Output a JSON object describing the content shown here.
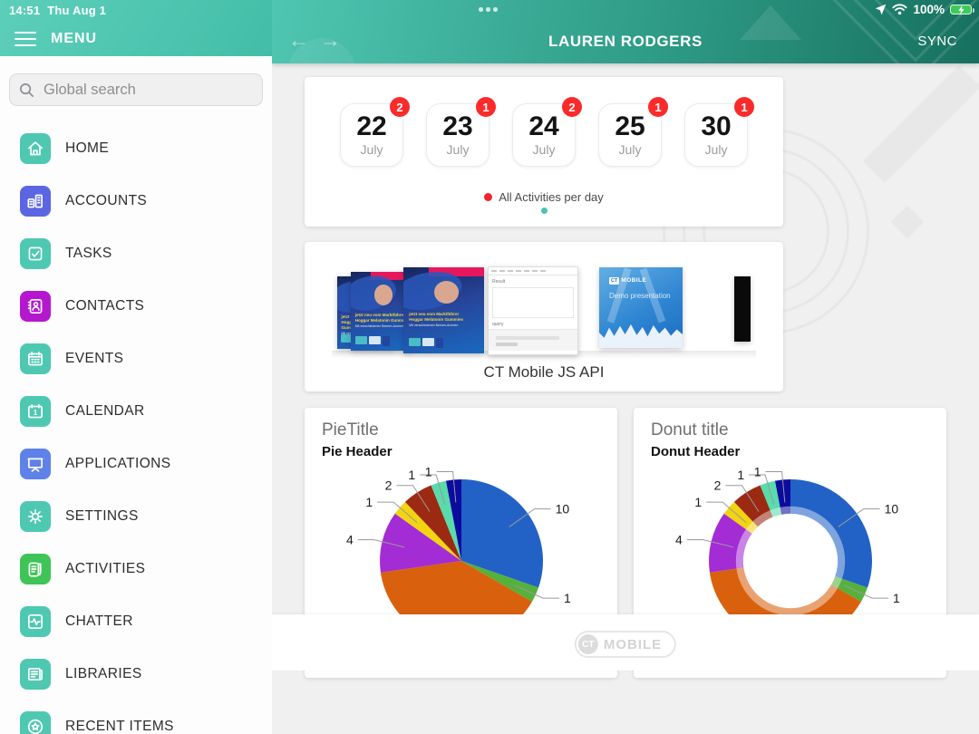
{
  "status_bar": {
    "time": "14:51",
    "date": "Thu Aug 1",
    "battery_percent": "100%"
  },
  "sidebar": {
    "menu_label": "MENU",
    "search_placeholder": "Global search",
    "items": [
      {
        "label": "HOME",
        "icon": "home-icon",
        "color": "#4fc8b2"
      },
      {
        "label": "ACCOUNTS",
        "icon": "accounts-icon",
        "color": "#5c66e2"
      },
      {
        "label": "TASKS",
        "icon": "tasks-icon",
        "color": "#4fc8b2"
      },
      {
        "label": "CONTACTS",
        "icon": "contacts-icon",
        "color": "#b517cf"
      },
      {
        "label": "EVENTS",
        "icon": "events-icon",
        "color": "#4fc8b2"
      },
      {
        "label": "CALENDAR",
        "icon": "calendar-icon",
        "color": "#4fc8b2"
      },
      {
        "label": "APPLICATIONS",
        "icon": "applications-icon",
        "color": "#5f82e8"
      },
      {
        "label": "SETTINGS",
        "icon": "settings-icon",
        "color": "#4fc8b2"
      },
      {
        "label": "ACTIVITIES",
        "icon": "activities-icon",
        "color": "#3ec457"
      },
      {
        "label": "CHATTER",
        "icon": "chatter-icon",
        "color": "#4fc8b2"
      },
      {
        "label": "LIBRARIES",
        "icon": "libraries-icon",
        "color": "#4fc8b2"
      },
      {
        "label": "RECENT ITEMS",
        "icon": "recent-items-icon",
        "color": "#4fc8b2"
      }
    ]
  },
  "header": {
    "title": "LAUREN RODGERS",
    "sync_label": "SYNC"
  },
  "calendar_card": {
    "days": [
      {
        "day": "22",
        "month": "July",
        "badge": "2"
      },
      {
        "day": "23",
        "month": "July",
        "badge": "1"
      },
      {
        "day": "24",
        "month": "July",
        "badge": "2"
      },
      {
        "day": "25",
        "month": "July",
        "badge": "1"
      },
      {
        "day": "30",
        "month": "July",
        "badge": "1"
      }
    ],
    "legend_label": "All Activities per day",
    "legend_color": "#f5222d",
    "pager_color": "#45c4b2"
  },
  "presentation_card": {
    "caption": "CT Mobile JS API",
    "pharma_slide": {
      "line1": "jetzt neu vom Marktführer",
      "line2": "Hoggar Melatonin Gummies",
      "sub": "Mit verschiedenen Beeren-Aromen"
    },
    "api_page": {
      "result_label": "Result",
      "query_label": "query"
    },
    "demo_slide": {
      "brand_ct": "CT",
      "brand_mobile": "MOBILE",
      "title": "Demo presentation"
    }
  },
  "footer": {
    "logo_ct": "CT",
    "logo_mobile": "MOBILE"
  },
  "chart_data": [
    {
      "type": "pie",
      "title": "PieTitle",
      "subtitle": "Pie Header",
      "values": [
        10,
        1,
        13,
        4,
        1,
        2,
        1,
        1
      ],
      "colors": [
        "#2262c6",
        "#55b13c",
        "#d9600d",
        "#a32cd4",
        "#f2d411",
        "#9c2a12",
        "#58dcab",
        "#0b0b9e"
      ],
      "total": 33,
      "start_angle_deg": 0,
      "label_style": "callout-values",
      "legend": false
    },
    {
      "type": "donut",
      "title": "Donut title",
      "subtitle": "Donut Header",
      "values": [
        10,
        1,
        13,
        4,
        1,
        2,
        1,
        1
      ],
      "colors": [
        "#2262c6",
        "#55b13c",
        "#d9600d",
        "#a32cd4",
        "#f2d411",
        "#9c2a12",
        "#58dcab",
        "#0b0b9e"
      ],
      "total": 33,
      "start_angle_deg": 0,
      "inner_radius_ratio": 0.58,
      "label_style": "callout-values",
      "legend": false
    }
  ]
}
